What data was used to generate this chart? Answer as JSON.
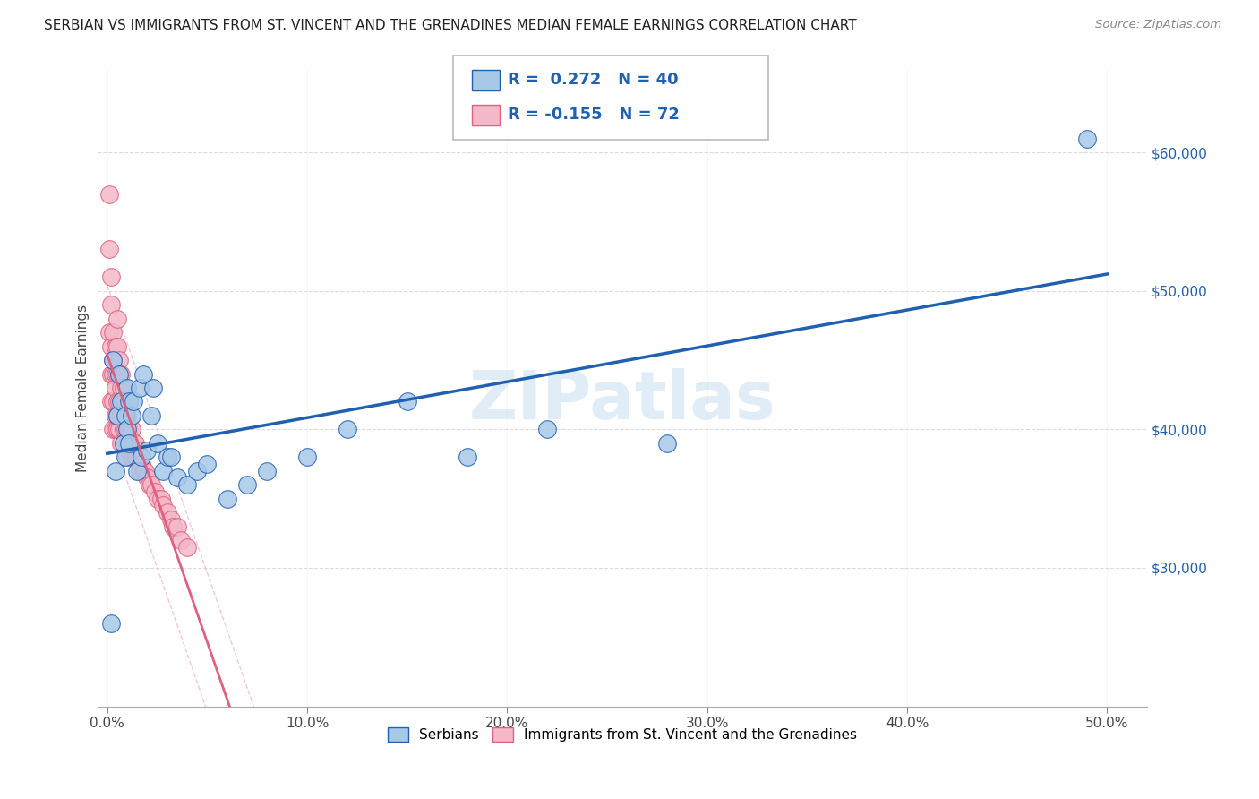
{
  "title": "SERBIAN VS IMMIGRANTS FROM ST. VINCENT AND THE GRENADINES MEDIAN FEMALE EARNINGS CORRELATION CHART",
  "source": "Source: ZipAtlas.com",
  "ylabel": "Median Female Earnings",
  "xlabel_ticks": [
    "0.0%",
    "10.0%",
    "20.0%",
    "30.0%",
    "40.0%",
    "50.0%"
  ],
  "ytick_labels": [
    "$30,000",
    "$40,000",
    "$50,000",
    "$60,000"
  ],
  "ytick_values": [
    30000,
    40000,
    50000,
    60000
  ],
  "xlim": [
    -0.005,
    0.52
  ],
  "ylim": [
    20000,
    66000
  ],
  "series1_color": "#a8c8e8",
  "series2_color": "#f4b8c8",
  "line1_color": "#2060b0",
  "line2_color": "#e06080",
  "watermark": "ZIPatlas",
  "series1_label": "Serbians",
  "series2_label": "Immigrants from St. Vincent and the Grenadines",
  "series1_x": [
    0.002,
    0.003,
    0.004,
    0.005,
    0.006,
    0.007,
    0.008,
    0.009,
    0.009,
    0.01,
    0.01,
    0.011,
    0.011,
    0.012,
    0.013,
    0.015,
    0.016,
    0.017,
    0.018,
    0.02,
    0.022,
    0.023,
    0.025,
    0.028,
    0.03,
    0.032,
    0.035,
    0.04,
    0.045,
    0.05,
    0.06,
    0.07,
    0.08,
    0.1,
    0.12,
    0.15,
    0.18,
    0.22,
    0.28,
    0.49
  ],
  "series1_y": [
    26000,
    45000,
    37000,
    41000,
    44000,
    42000,
    39000,
    41000,
    38000,
    40000,
    43000,
    39000,
    42000,
    41000,
    42000,
    37000,
    43000,
    38000,
    44000,
    38500,
    41000,
    43000,
    39000,
    37000,
    38000,
    38000,
    36500,
    36000,
    37000,
    37500,
    35000,
    36000,
    37000,
    38000,
    40000,
    42000,
    38000,
    40000,
    39000,
    61000
  ],
  "series2_x": [
    0.001,
    0.001,
    0.001,
    0.002,
    0.002,
    0.002,
    0.002,
    0.002,
    0.003,
    0.003,
    0.003,
    0.003,
    0.003,
    0.004,
    0.004,
    0.004,
    0.004,
    0.004,
    0.005,
    0.005,
    0.005,
    0.005,
    0.005,
    0.005,
    0.006,
    0.006,
    0.006,
    0.006,
    0.007,
    0.007,
    0.007,
    0.007,
    0.008,
    0.008,
    0.008,
    0.008,
    0.009,
    0.009,
    0.01,
    0.01,
    0.01,
    0.01,
    0.011,
    0.011,
    0.011,
    0.012,
    0.012,
    0.012,
    0.013,
    0.013,
    0.014,
    0.014,
    0.015,
    0.015,
    0.016,
    0.016,
    0.017,
    0.018,
    0.019,
    0.02,
    0.021,
    0.022,
    0.024,
    0.025,
    0.027,
    0.028,
    0.03,
    0.032,
    0.033,
    0.035,
    0.037,
    0.04
  ],
  "series2_y": [
    57000,
    53000,
    47000,
    51000,
    49000,
    46000,
    44000,
    42000,
    47000,
    45000,
    44000,
    42000,
    40000,
    46000,
    44000,
    43000,
    41000,
    40000,
    48000,
    46000,
    44000,
    42000,
    41000,
    40000,
    45000,
    44000,
    42000,
    40000,
    44000,
    43000,
    41000,
    39000,
    43000,
    42000,
    40000,
    39000,
    42000,
    40000,
    41000,
    40000,
    39000,
    38000,
    40000,
    39500,
    38500,
    40000,
    39000,
    38000,
    39000,
    38000,
    39000,
    38000,
    38500,
    38000,
    38000,
    37000,
    37500,
    37000,
    37000,
    36500,
    36000,
    36000,
    35500,
    35000,
    35000,
    34500,
    34000,
    33500,
    33000,
    33000,
    32000,
    31500
  ]
}
